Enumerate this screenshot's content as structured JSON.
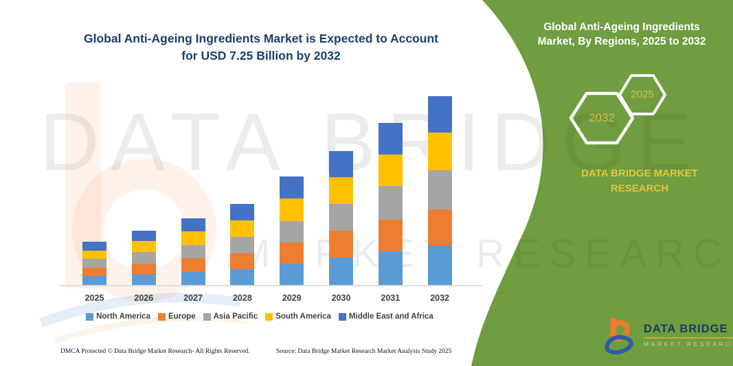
{
  "page": {
    "title_line1": "Global Anti-Ageing Ingredients Market is Expected to Account",
    "title_line2": "for USD 7.25 Billion by 2032",
    "footer_left": "DMCA Protected © Data Bridge Market Research-  All Rights Reserved.",
    "footer_right": "Source: Data Bridge Market Research  Market Analysis Study 2025"
  },
  "panel": {
    "title_line1": "Global Anti-Ageing Ingredients",
    "title_line2": "Market, By Regions, 2025 to 2032",
    "hexagon_back_label": "2032",
    "hexagon_front_label": "2025",
    "brand_line1": "DATA BRIDGE MARKET",
    "brand_line2": "RESEARCH",
    "colors": {
      "background": "#6F9D3F",
      "gold": "#DDBE3D",
      "hexagon_border": "#FFFFFF"
    }
  },
  "logo": {
    "name": "DATA BRIDGE",
    "subtitle": "MARKET RESEARCH",
    "colors": {
      "b_orange": "#E87E2B",
      "b_blue": "#2D5CA8",
      "name_navy": "#1E3A5F",
      "rule_gold": "#C9A838"
    }
  },
  "watermark": {
    "line1": "DATA BRIDGE",
    "line2": "MARKET RESEARCH"
  },
  "chart_data": {
    "type": "bar",
    "stacked": true,
    "title": "Global Anti-Ageing Ingredients Market is Expected to Account for USD 7.25 Billion by 2032",
    "unit": "USD billion (values estimated from bar heights; 2032 total = 7.25 stated in title)",
    "categories": [
      "2025",
      "2026",
      "2027",
      "2028",
      "2029",
      "2030",
      "2031",
      "2032"
    ],
    "series": [
      {
        "name": "North America",
        "color": "#5B9BD5",
        "values": [
          0.34,
          0.4,
          0.5,
          0.61,
          0.82,
          1.05,
          1.29,
          1.5
        ]
      },
      {
        "name": "Europe",
        "color": "#ED7D31",
        "values": [
          0.32,
          0.42,
          0.53,
          0.61,
          0.82,
          1.03,
          1.21,
          1.4
        ]
      },
      {
        "name": "Asia Pacific",
        "color": "#A5A5A5",
        "values": [
          0.34,
          0.45,
          0.5,
          0.63,
          0.82,
          1.03,
          1.29,
          1.5
        ]
      },
      {
        "name": "South America",
        "color": "#FFC000",
        "values": [
          0.32,
          0.42,
          0.53,
          0.63,
          0.87,
          1.03,
          1.21,
          1.45
        ]
      },
      {
        "name": "Middle East and Africa",
        "color": "#4472C4",
        "values": [
          0.34,
          0.4,
          0.5,
          0.63,
          0.84,
          1.0,
          1.21,
          1.4
        ]
      }
    ],
    "totals": [
      1.66,
      2.09,
      2.56,
      3.11,
      4.17,
      5.14,
      6.21,
      7.25
    ],
    "xlabel": "",
    "ylabel": "",
    "ylim": [
      0,
      7.5
    ],
    "gridlines": false,
    "y_axis_visible": false,
    "legend_position": "bottom"
  }
}
